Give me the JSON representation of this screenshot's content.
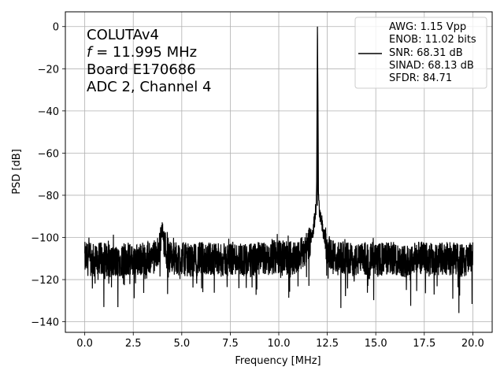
{
  "chart_data": {
    "type": "line",
    "title": "",
    "xlabel": "Frequency [MHz]",
    "ylabel": "PSD [dB]",
    "xlim": [
      -1.0,
      21.0
    ],
    "ylim": [
      -145,
      7
    ],
    "xticks": [
      0.0,
      2.5,
      5.0,
      7.5,
      10.0,
      12.5,
      15.0,
      17.5,
      20.0
    ],
    "xtick_labels": [
      "0.0",
      "2.5",
      "5.0",
      "7.5",
      "10.0",
      "12.5",
      "15.0",
      "17.5",
      "20.0"
    ],
    "yticks": [
      0,
      -20,
      -40,
      -60,
      -80,
      -100,
      -120,
      -140
    ],
    "ytick_labels": [
      "0",
      "−20",
      "−40",
      "−60",
      "−80",
      "−100",
      "−120",
      "−140"
    ],
    "grid": true,
    "line_color": "#000000",
    "annotation": {
      "lines": [
        "COLUTAv4",
        "f = 11.995 MHz",
        "Board E170686",
        "ADC 2, Channel 4"
      ]
    },
    "legend": {
      "placement": "top-right",
      "entries": [
        "AWG: 1.15 Vpp",
        "ENOB: 11.02 bits",
        "SNR: 68.31 dB",
        "SINAD: 68.13 dB",
        "SFDR: 84.71"
      ]
    },
    "series": [
      {
        "x": [
          0.0,
          0.5,
          1.0,
          1.5,
          2.0,
          2.5,
          3.0,
          3.5,
          3.8,
          4.0,
          4.2,
          4.5,
          5.0,
          5.5,
          6.0,
          6.5,
          7.0,
          7.5,
          8.0,
          8.5,
          9.0,
          9.5,
          10.0,
          10.5,
          11.0,
          11.5,
          11.8,
          11.9,
          11.95,
          11.995,
          12.05,
          12.1,
          12.3,
          12.5,
          13.0,
          13.5,
          14.0,
          14.5,
          15.0,
          15.5,
          16.0,
          16.5,
          17.0,
          17.5,
          18.0,
          18.5,
          19.0,
          19.5,
          20.0
        ],
        "y": [
          -110,
          -111,
          -110,
          -112,
          -110,
          -111,
          -110,
          -110,
          -107,
          -96,
          -107,
          -110,
          -110,
          -111,
          -110,
          -110,
          -111,
          -110,
          -110,
          -111,
          -110,
          -110,
          -109,
          -110,
          -109,
          -104,
          -95,
          -88,
          -80,
          0,
          -82,
          -88,
          -97,
          -106,
          -110,
          -110,
          -111,
          -110,
          -111,
          -110,
          -110,
          -111,
          -110,
          -110,
          -111,
          -110,
          -110,
          -111,
          -110
        ]
      }
    ]
  }
}
